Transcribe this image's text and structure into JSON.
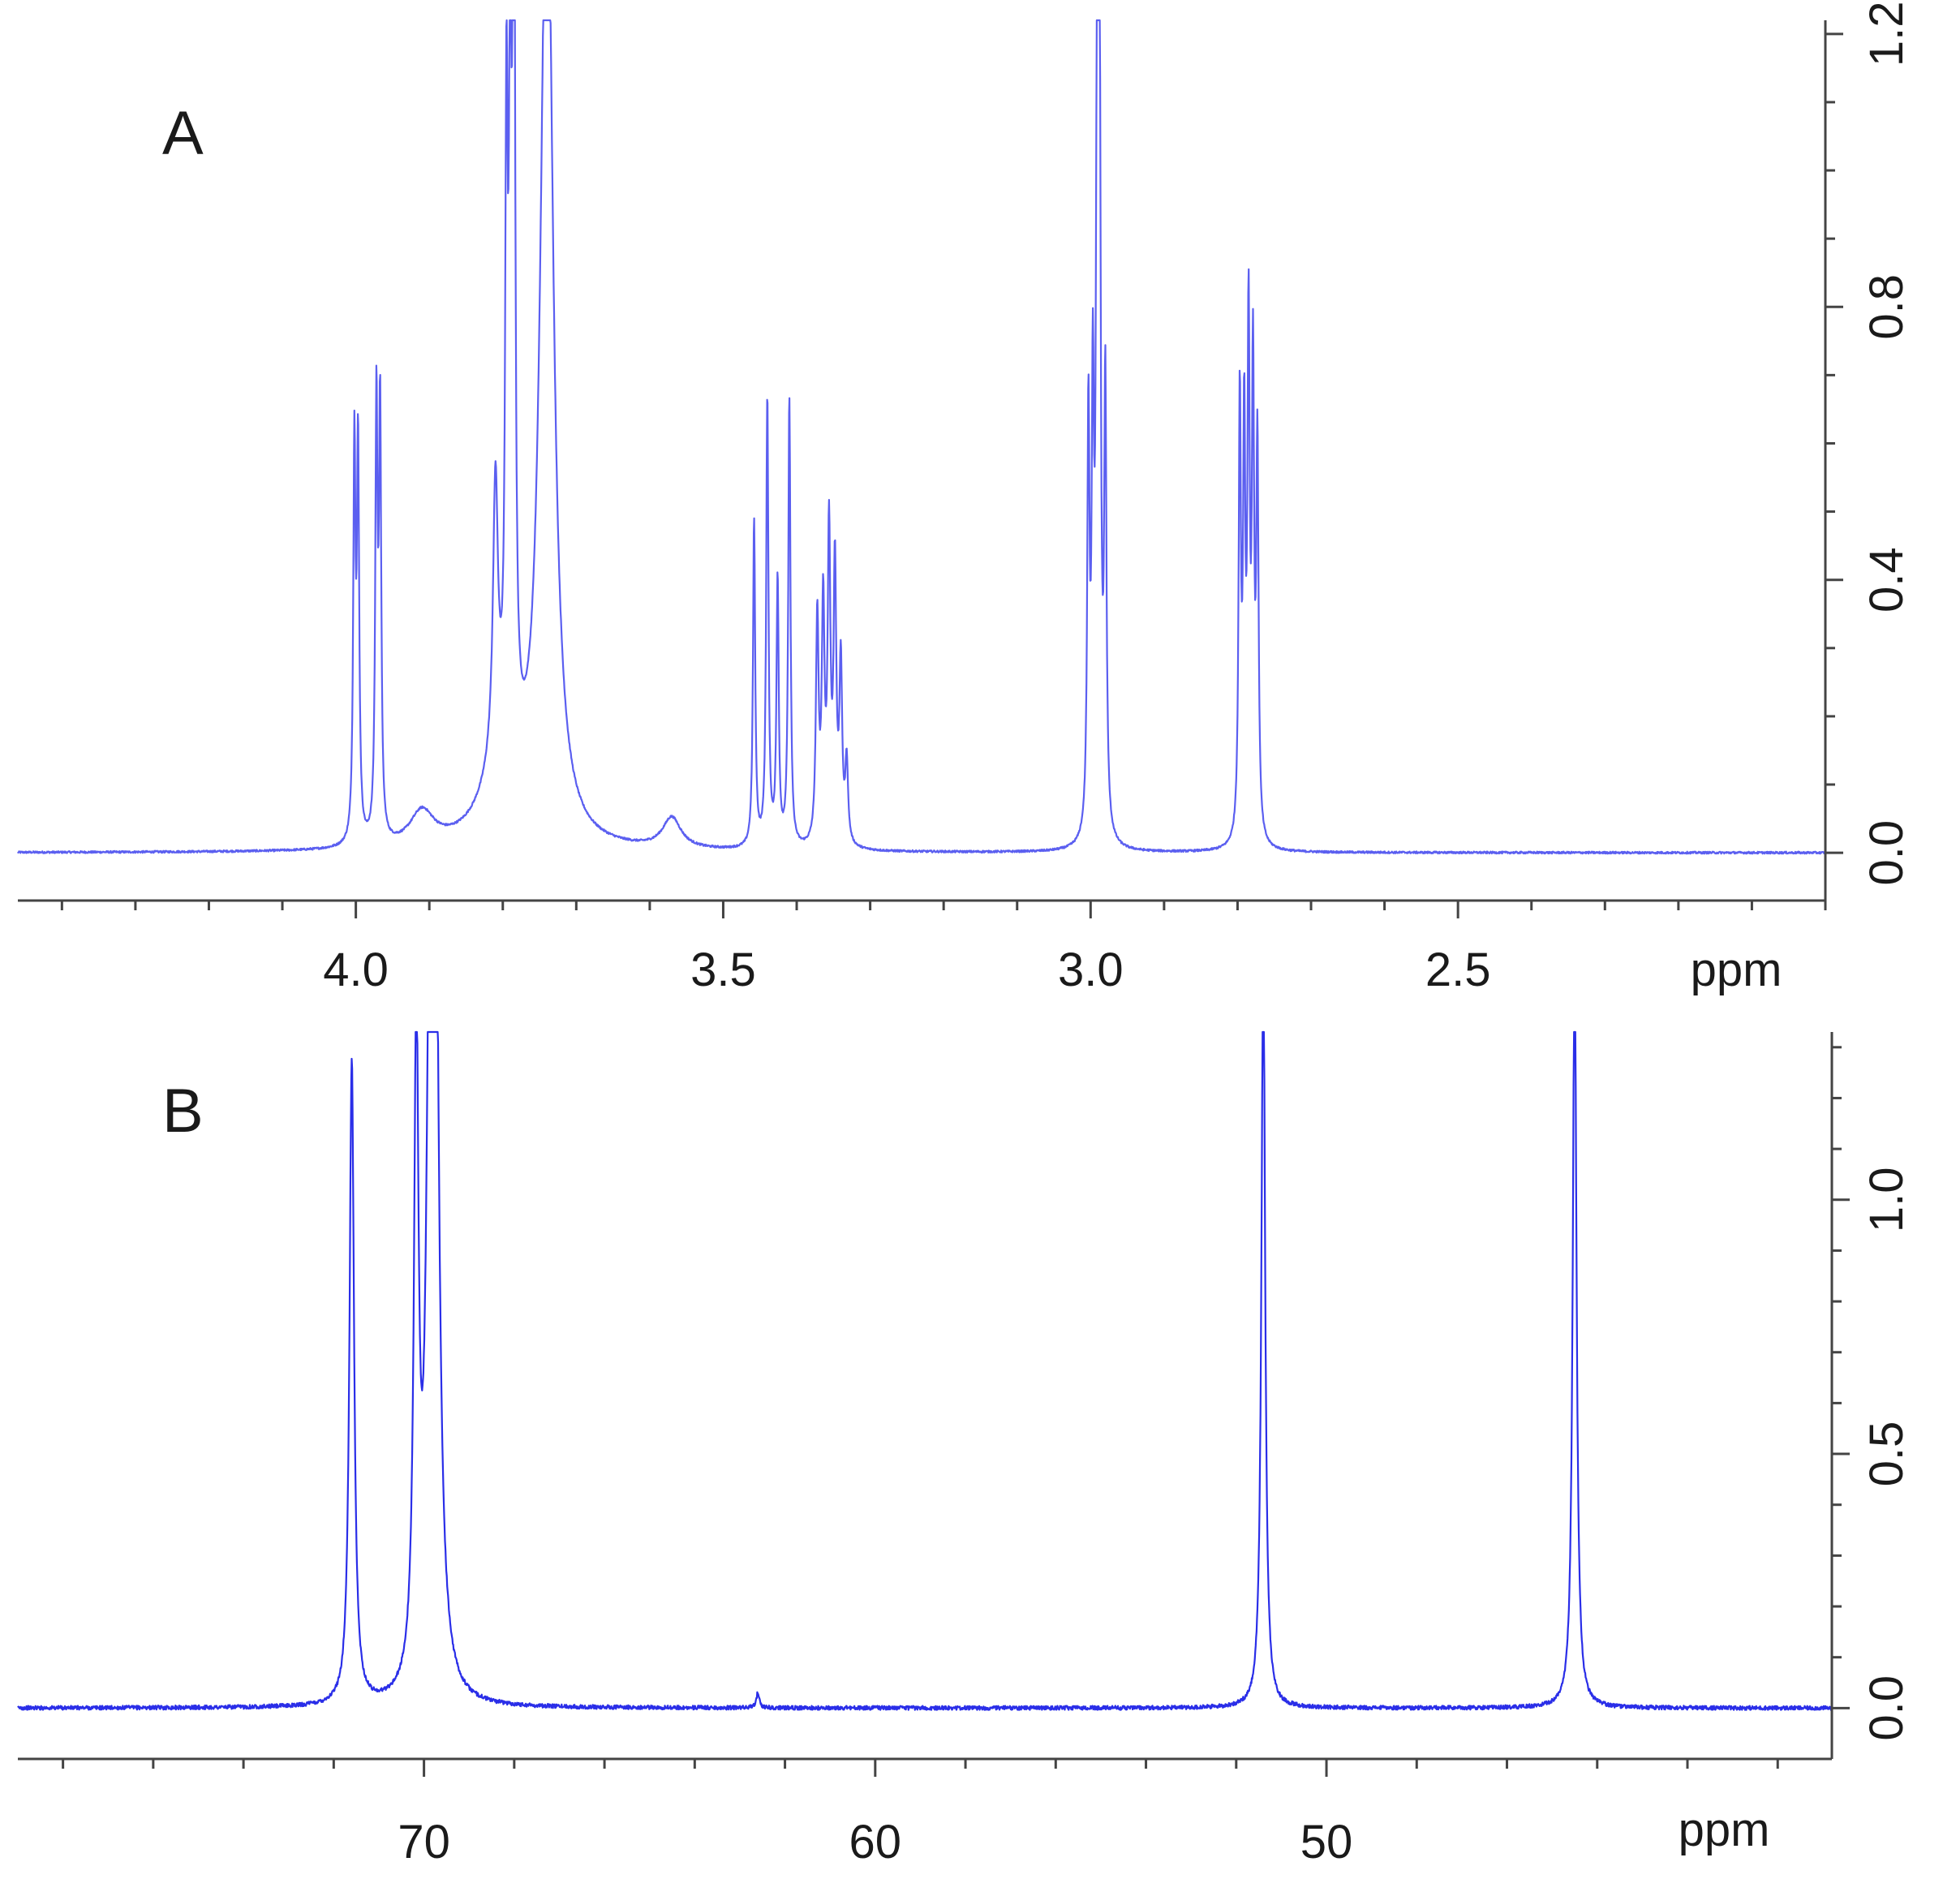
{
  "chart_data": [
    {
      "panel_label": "A",
      "type": "line",
      "xlabel": "ppm",
      "ylabel": "",
      "xlim": [
        4.46,
        2.0
      ],
      "ylim": [
        -0.07,
        1.22
      ],
      "x_reversed": true,
      "x_ticks": [
        4.0,
        3.5,
        3.0,
        2.5
      ],
      "x_tick_labels": [
        "4.0",
        "3.5",
        "3.0",
        "2.5"
      ],
      "y_ticks": [
        0.0,
        0.4,
        0.8,
        1.2
      ],
      "y_tick_labels": [
        "0.0",
        "0.4",
        "0.8",
        "1.2"
      ],
      "baseline": 0.0,
      "series_color": "#5b5ff0",
      "peaks": [
        {
          "ppm": 4.002,
          "height": 0.57,
          "width": 0.0018
        },
        {
          "ppm": 3.997,
          "height": 0.57,
          "width": 0.0018
        },
        {
          "ppm": 3.972,
          "height": 0.63,
          "width": 0.0018
        },
        {
          "ppm": 3.967,
          "height": 0.62,
          "width": 0.0018
        },
        {
          "ppm": 3.91,
          "height": 0.05,
          "width": 0.02
        },
        {
          "ppm": 3.81,
          "height": 0.4,
          "width": 0.004
        },
        {
          "ppm": 3.795,
          "height": 0.86,
          "width": 0.002
        },
        {
          "ppm": 3.79,
          "height": 0.87,
          "width": 0.002
        },
        {
          "ppm": 3.785,
          "height": 1.5,
          "width": 0.002
        },
        {
          "ppm": 3.74,
          "height": 1.5,
          "width": 0.01
        },
        {
          "ppm": 3.8,
          "height": 0.12,
          "width": 0.03
        },
        {
          "ppm": 3.57,
          "height": 0.045,
          "width": 0.015
        },
        {
          "ppm": 3.458,
          "height": 0.48,
          "width": 0.0018
        },
        {
          "ppm": 3.44,
          "height": 0.66,
          "width": 0.0018
        },
        {
          "ppm": 3.426,
          "height": 0.39,
          "width": 0.0018
        },
        {
          "ppm": 3.41,
          "height": 0.66,
          "width": 0.0018
        },
        {
          "ppm": 3.372,
          "height": 0.33,
          "width": 0.0022
        },
        {
          "ppm": 3.364,
          "height": 0.34,
          "width": 0.0022
        },
        {
          "ppm": 3.356,
          "height": 0.45,
          "width": 0.0022
        },
        {
          "ppm": 3.348,
          "height": 0.4,
          "width": 0.0022
        },
        {
          "ppm": 3.34,
          "height": 0.26,
          "width": 0.0022
        },
        {
          "ppm": 3.332,
          "height": 0.12,
          "width": 0.0022
        },
        {
          "ppm": 3.003,
          "height": 0.61,
          "width": 0.0018
        },
        {
          "ppm": 2.997,
          "height": 0.6,
          "width": 0.0018
        },
        {
          "ppm": 2.991,
          "height": 1.14,
          "width": 0.0018
        },
        {
          "ppm": 2.988,
          "height": 1.19,
          "width": 0.0018
        },
        {
          "ppm": 2.98,
          "height": 0.65,
          "width": 0.0018
        },
        {
          "ppm": 2.797,
          "height": 0.64,
          "width": 0.0018
        },
        {
          "ppm": 2.791,
          "height": 0.58,
          "width": 0.0018
        },
        {
          "ppm": 2.785,
          "height": 0.73,
          "width": 0.0018
        },
        {
          "ppm": 2.779,
          "height": 0.67,
          "width": 0.0018
        },
        {
          "ppm": 2.773,
          "height": 0.57,
          "width": 0.0018
        }
      ]
    },
    {
      "panel_label": "B",
      "type": "line",
      "xlabel": "ppm",
      "ylabel": "",
      "xlim": [
        79.0,
        38.8
      ],
      "ylim": [
        -0.1,
        1.33
      ],
      "x_reversed": true,
      "x_ticks": [
        70,
        60,
        50
      ],
      "x_tick_labels": [
        "70",
        "60",
        "50"
      ],
      "y_ticks": [
        0.0,
        0.5,
        1.0
      ],
      "y_tick_labels": [
        "0.0",
        "0.5",
        "1.0"
      ],
      "baseline": 0.0,
      "series_color": "#2a2ee8",
      "peaks": [
        {
          "ppm": 71.6,
          "height": 1.27,
          "width": 0.06
        },
        {
          "ppm": 70.17,
          "height": 1.28,
          "width": 0.06
        },
        {
          "ppm": 69.85,
          "height": 1.5,
          "width": 0.09
        },
        {
          "ppm": 69.75,
          "height": 1.4,
          "width": 0.09
        },
        {
          "ppm": 62.6,
          "height": 0.03,
          "width": 0.04
        },
        {
          "ppm": 51.4,
          "height": 1.5,
          "width": 0.05
        },
        {
          "ppm": 44.5,
          "height": 1.5,
          "width": 0.05
        }
      ]
    }
  ]
}
